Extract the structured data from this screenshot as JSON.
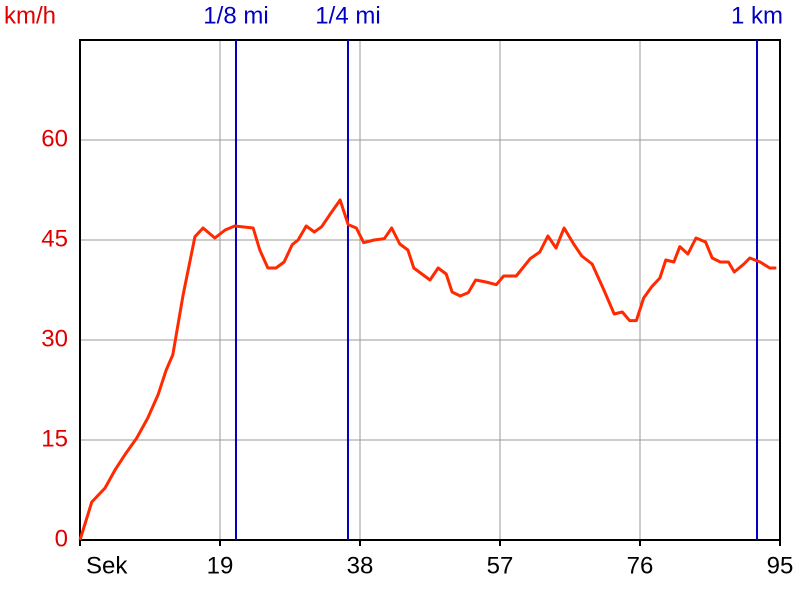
{
  "chart_data": {
    "type": "line",
    "ylabel": "km/h",
    "x": [
      0,
      1.6,
      3.4,
      4.75,
      6.1,
      7.7,
      9.2,
      10.6,
      11.7,
      12.6,
      14,
      15.6,
      16.7,
      18.3,
      19.7,
      21,
      23.5,
      24.4,
      25.5,
      26.6,
      27.7,
      28.8,
      29.6,
      30.7,
      31.8,
      32.8,
      33.9,
      35.3,
      36.4,
      37.5,
      38.5,
      39.9,
      41.3,
      42.3,
      43.4,
      44.5,
      45.3,
      47.5,
      48.6,
      49.7,
      50.5,
      51.6,
      52.7,
      53.7,
      55.1,
      56.5,
      57.5,
      59.2,
      61.1,
      62.4,
      63.5,
      64.6,
      65.7,
      67,
      68.1,
      69.5,
      71.1,
      72.5,
      73.6,
      74.6,
      75.5,
      76.5,
      77.6,
      78.7,
      79.5,
      80.6,
      81.4,
      82.5,
      83.6,
      84.9,
      85.8,
      86.9,
      88,
      88.8,
      90.1,
      90.9,
      92.3,
      93.6,
      94.5
    ],
    "values": [
      0,
      5.7,
      7.8,
      10.5,
      12.8,
      15.3,
      18.3,
      21.8,
      25.5,
      27.8,
      36.8,
      45.5,
      46.8,
      45.3,
      46.5,
      47.1,
      46.8,
      43.5,
      40.8,
      40.8,
      41.7,
      44.3,
      45,
      47.1,
      46.2,
      47,
      48.8,
      51,
      47.3,
      46.8,
      44.6,
      45,
      45.2,
      46.8,
      44.4,
      43.5,
      40.8,
      39,
      40.8,
      39.9,
      37.2,
      36.6,
      37.1,
      39,
      38.7,
      38.3,
      39.6,
      39.6,
      42.2,
      43.2,
      45.6,
      43.8,
      46.8,
      44.4,
      42.6,
      41.4,
      37.5,
      33.9,
      34.2,
      32.9,
      32.9,
      36.3,
      38,
      39.3,
      42,
      41.7,
      44,
      42.9,
      45.3,
      44.7,
      42.3,
      41.7,
      41.7,
      40.2,
      41.4,
      42.3,
      41.7,
      40.8,
      40.8
    ],
    "color": "#ff2a00",
    "xlim": [
      0,
      95
    ],
    "xticks": [
      {
        "value": 0,
        "label": "Sek"
      },
      19,
      38,
      57,
      76,
      95
    ],
    "ylim": [
      0,
      75
    ],
    "yticks": [
      0,
      15,
      30,
      45,
      60
    ],
    "grid": true,
    "markers": [
      {
        "label": "1/8 mi",
        "x": 21.17
      },
      {
        "label": "1/4 mi",
        "x": 36.37
      },
      {
        "label": "1 km",
        "x": 91.88
      }
    ],
    "marker_color": "#0000c0"
  }
}
